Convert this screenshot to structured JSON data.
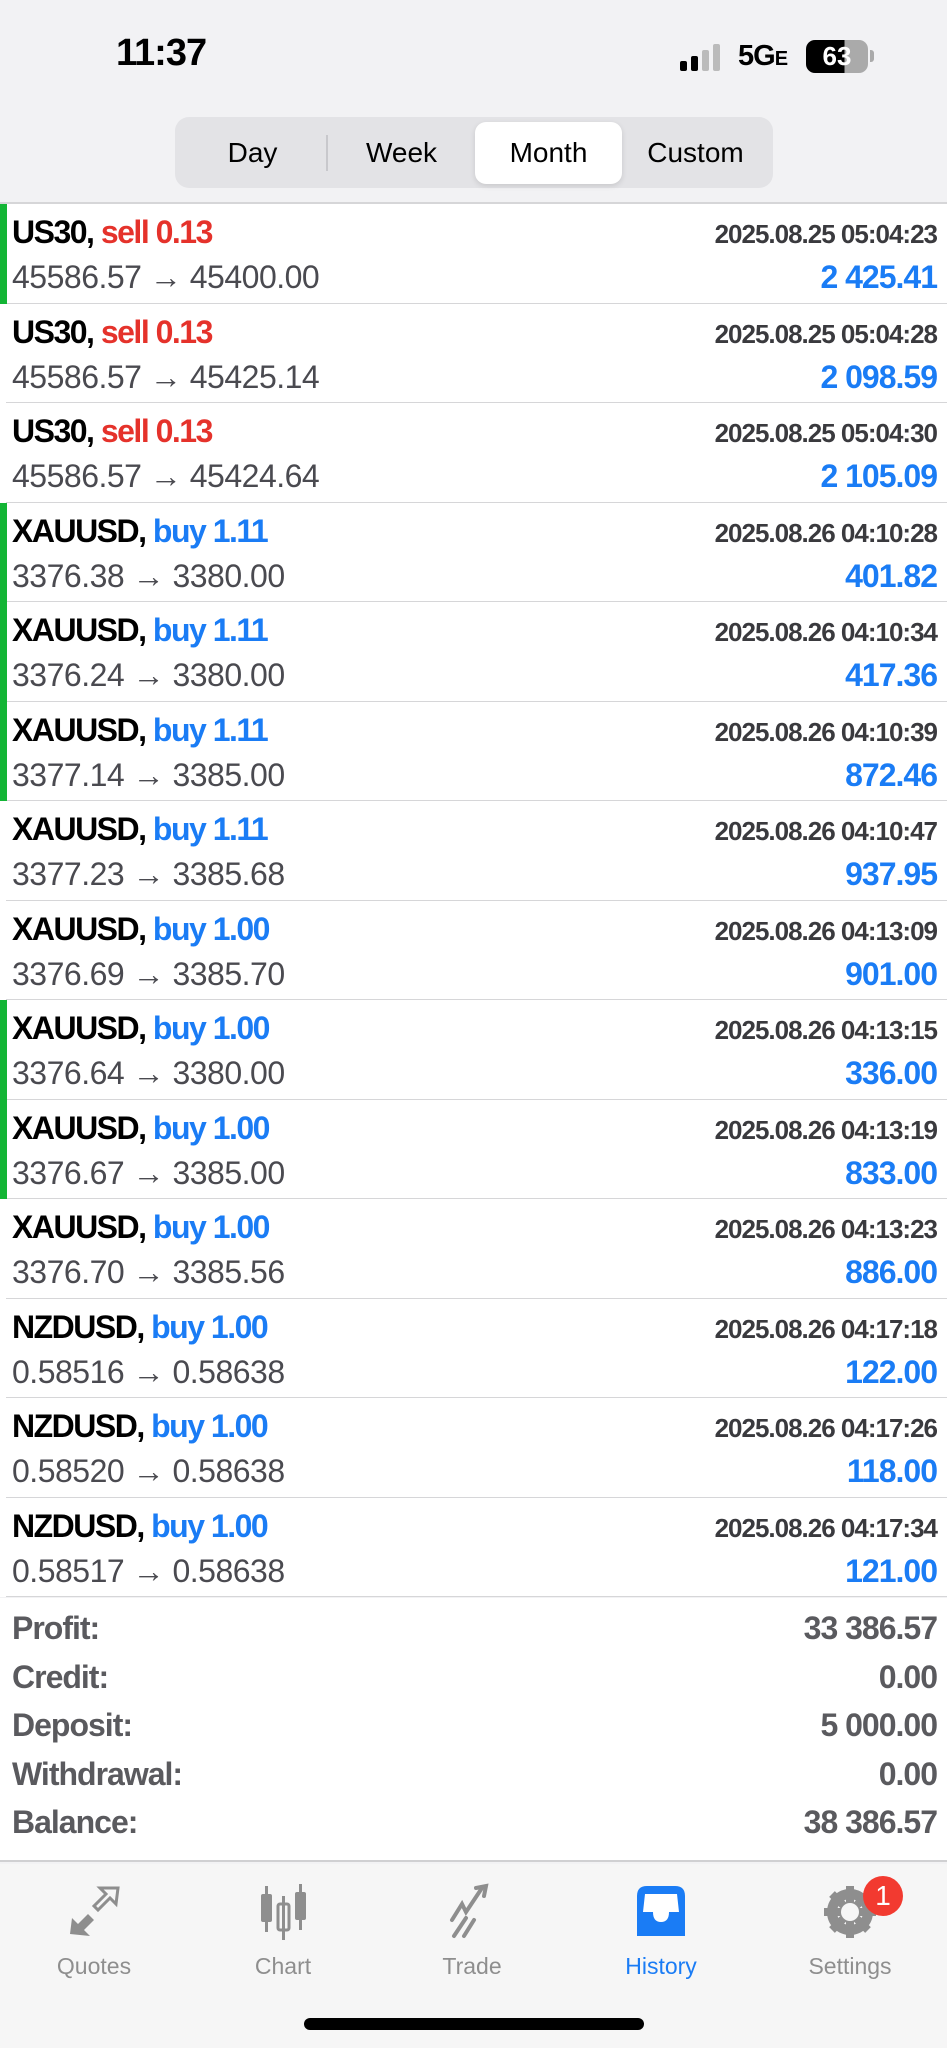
{
  "status_bar": {
    "time": "11:37",
    "network": "5G",
    "network_suffix": "E",
    "battery": "63"
  },
  "period_tabs": [
    {
      "label": "Day",
      "active": false
    },
    {
      "label": "Week",
      "active": false
    },
    {
      "label": "Month",
      "active": true
    },
    {
      "label": "Custom",
      "active": false
    }
  ],
  "colors": {
    "sell": "#e5322b",
    "buy": "#1a7cf5",
    "profit": "#1a7cf5",
    "marker": "#13b535"
  },
  "deals": [
    {
      "symbol": "US30,",
      "side": "sell",
      "volume": "0.13",
      "time": "2025.08.25 05:04:23",
      "prices": "45586.57 → 45400.00",
      "profit": "2 425.41",
      "marked": true
    },
    {
      "symbol": "US30,",
      "side": "sell",
      "volume": "0.13",
      "time": "2025.08.25 05:04:28",
      "prices": "45586.57 → 45425.14",
      "profit": "2 098.59",
      "marked": false
    },
    {
      "symbol": "US30,",
      "side": "sell",
      "volume": "0.13",
      "time": "2025.08.25 05:04:30",
      "prices": "45586.57 → 45424.64",
      "profit": "2 105.09",
      "marked": false
    },
    {
      "symbol": "XAUUSD,",
      "side": "buy",
      "volume": "1.11",
      "time": "2025.08.26 04:10:28",
      "prices": "3376.38 → 3380.00",
      "profit": "401.82",
      "marked": true
    },
    {
      "symbol": "XAUUSD,",
      "side": "buy",
      "volume": "1.11",
      "time": "2025.08.26 04:10:34",
      "prices": "3376.24 → 3380.00",
      "profit": "417.36",
      "marked": true
    },
    {
      "symbol": "XAUUSD,",
      "side": "buy",
      "volume": "1.11",
      "time": "2025.08.26 04:10:39",
      "prices": "3377.14 → 3385.00",
      "profit": "872.46",
      "marked": true
    },
    {
      "symbol": "XAUUSD,",
      "side": "buy",
      "volume": "1.11",
      "time": "2025.08.26 04:10:47",
      "prices": "3377.23 → 3385.68",
      "profit": "937.95",
      "marked": false
    },
    {
      "symbol": "XAUUSD,",
      "side": "buy",
      "volume": "1.00",
      "time": "2025.08.26 04:13:09",
      "prices": "3376.69 → 3385.70",
      "profit": "901.00",
      "marked": false
    },
    {
      "symbol": "XAUUSD,",
      "side": "buy",
      "volume": "1.00",
      "time": "2025.08.26 04:13:15",
      "prices": "3376.64 → 3380.00",
      "profit": "336.00",
      "marked": true
    },
    {
      "symbol": "XAUUSD,",
      "side": "buy",
      "volume": "1.00",
      "time": "2025.08.26 04:13:19",
      "prices": "3376.67 → 3385.00",
      "profit": "833.00",
      "marked": true
    },
    {
      "symbol": "XAUUSD,",
      "side": "buy",
      "volume": "1.00",
      "time": "2025.08.26 04:13:23",
      "prices": "3376.70 → 3385.56",
      "profit": "886.00",
      "marked": false
    },
    {
      "symbol": "NZDUSD,",
      "side": "buy",
      "volume": "1.00",
      "time": "2025.08.26 04:17:18",
      "prices": "0.58516 → 0.58638",
      "profit": "122.00",
      "marked": false
    },
    {
      "symbol": "NZDUSD,",
      "side": "buy",
      "volume": "1.00",
      "time": "2025.08.26 04:17:26",
      "prices": "0.58520 → 0.58638",
      "profit": "118.00",
      "marked": false
    },
    {
      "symbol": "NZDUSD,",
      "side": "buy",
      "volume": "1.00",
      "time": "2025.08.26 04:17:34",
      "prices": "0.58517 → 0.58638",
      "profit": "121.00",
      "marked": false
    }
  ],
  "summary": [
    {
      "label": "Profit:",
      "value": "33 386.57"
    },
    {
      "label": "Credit:",
      "value": "0.00"
    },
    {
      "label": "Deposit:",
      "value": "5 000.00"
    },
    {
      "label": "Withdrawal:",
      "value": "0.00"
    },
    {
      "label": "Balance:",
      "value": "38 386.57"
    }
  ],
  "tab_bar": [
    {
      "label": "Quotes",
      "icon": "quotes-arrows-icon",
      "active": false
    },
    {
      "label": "Chart",
      "icon": "candlestick-icon",
      "active": false
    },
    {
      "label": "Trade",
      "icon": "trade-trend-icon",
      "active": false
    },
    {
      "label": "History",
      "icon": "inbox-tray-icon",
      "active": true
    },
    {
      "label": "Settings",
      "icon": "gear-icon",
      "active": false,
      "badge": "1"
    }
  ]
}
